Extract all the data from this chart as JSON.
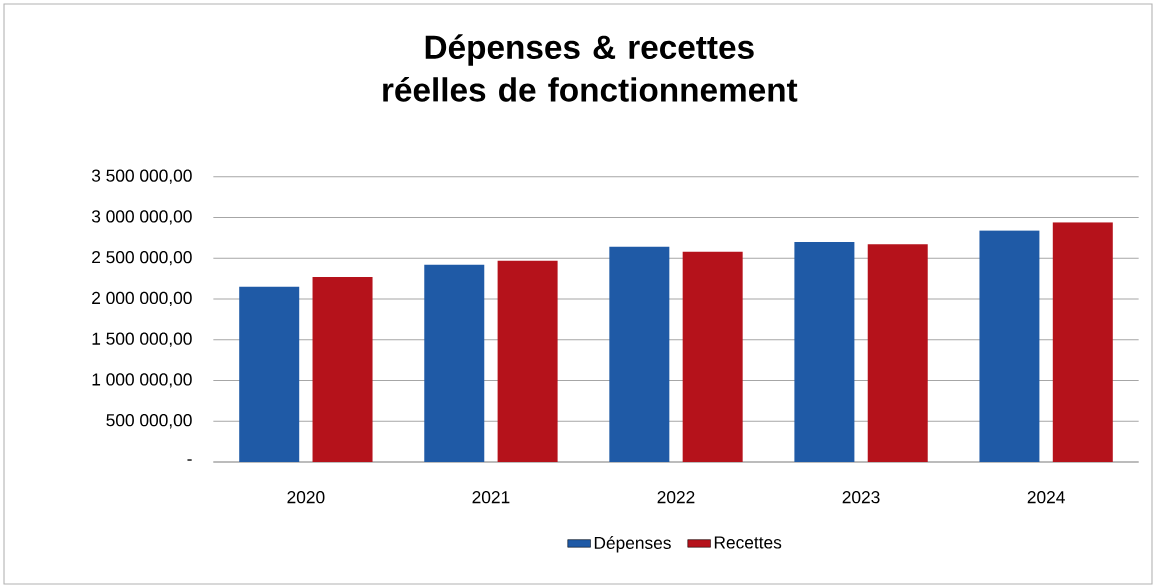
{
  "chart_data": {
    "type": "bar",
    "title": "Dépenses & recettes réelles de fonctionnement",
    "categories": [
      "2020",
      "2021",
      "2022",
      "2023",
      "2024"
    ],
    "series": [
      {
        "name": "Dépenses",
        "color": "#1f5aa6",
        "values": [
          2150000,
          2420000,
          2640000,
          2700000,
          2840000
        ]
      },
      {
        "name": "Recettes",
        "color": "#b5121b",
        "values": [
          2270000,
          2470000,
          2580000,
          2670000,
          2940000
        ]
      }
    ],
    "ylim": [
      0,
      3500000
    ],
    "yticks": [
      {
        "value": 0,
        "label": "-"
      },
      {
        "value": 500000,
        "label": "500 000,00"
      },
      {
        "value": 1000000,
        "label": "1 000 000,00"
      },
      {
        "value": 1500000,
        "label": "1 500 000,00"
      },
      {
        "value": 2000000,
        "label": "2 000 000,00"
      },
      {
        "value": 2500000,
        "label": "2 500 000,00"
      },
      {
        "value": 3000000,
        "label": "3 000 000,00"
      },
      {
        "value": 3500000,
        "label": "3 500 000,00"
      }
    ],
    "grid": "y",
    "legend": "bottom"
  }
}
